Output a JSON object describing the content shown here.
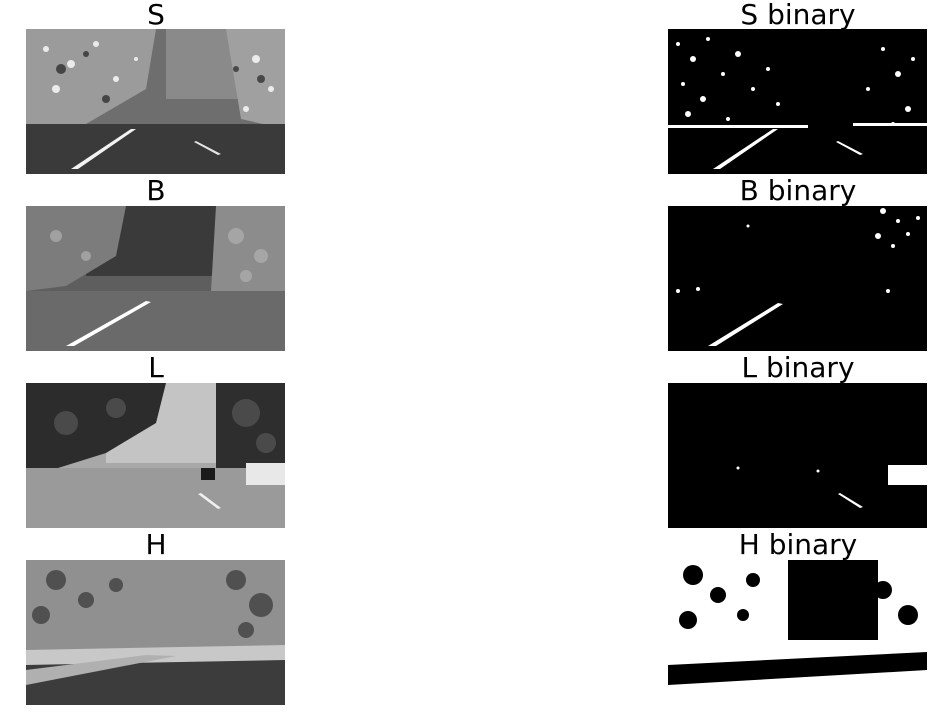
{
  "panels": [
    {
      "title": "S",
      "kind": "grayscale"
    },
    {
      "title": "S binary",
      "kind": "binary"
    },
    {
      "title": "B",
      "kind": "grayscale"
    },
    {
      "title": "B binary",
      "kind": "binary"
    },
    {
      "title": "L",
      "kind": "grayscale"
    },
    {
      "title": "L binary",
      "kind": "binary"
    },
    {
      "title": "H",
      "kind": "grayscale"
    },
    {
      "title": "H binary",
      "kind": "binary"
    }
  ]
}
